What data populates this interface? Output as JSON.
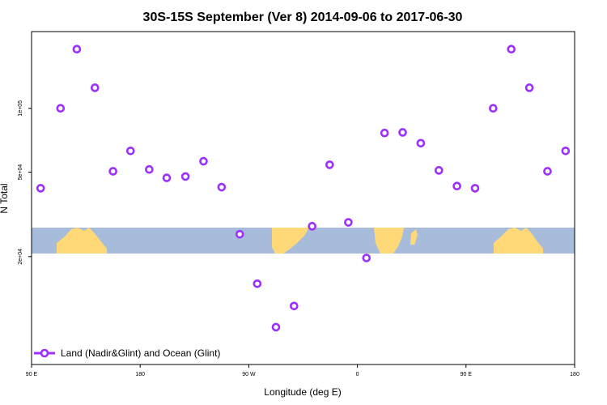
{
  "chart_data": {
    "type": "scatter",
    "title": "30S-15S September (Ver 8)   2014-09-06 to 2017-06-30",
    "xlabel": "Longitude (deg E)",
    "ylabel": "N Total",
    "x_domain_deg": [
      90,
      540
    ],
    "y_domain_value": [
      6200,
      230000
    ],
    "y_scale": "log",
    "x_ticks": [
      {
        "value": 90,
        "label": "90 E"
      },
      {
        "value": 180,
        "label": "180"
      },
      {
        "value": 270,
        "label": "90 W"
      },
      {
        "value": 360,
        "label": "0"
      },
      {
        "value": 450,
        "label": "90 E"
      },
      {
        "value": 540,
        "label": "180"
      }
    ],
    "y_ticks": [
      {
        "value": 20000,
        "label": "2e+04"
      },
      {
        "value": 50000,
        "label": "5e+04"
      },
      {
        "value": 100000,
        "label": "1e+05"
      }
    ],
    "legend": {
      "position": "bottom-left",
      "label": "Land (Nadir&Glint) and Ocean (Glint)"
    },
    "marker_color": "#9b30ff",
    "map_band": {
      "ocean_color": "#a7bcda",
      "land_color": "#ffd977"
    },
    "series": [
      {
        "name": "Land (Nadir&Glint) and Ocean (Glint)",
        "points": [
          [
            97.5,
            42000
          ],
          [
            114,
            100000
          ],
          [
            127.5,
            190000
          ],
          [
            142.5,
            125000
          ],
          [
            157.5,
            50500
          ],
          [
            172,
            63000
          ],
          [
            187.5,
            51500
          ],
          [
            202,
            47000
          ],
          [
            217.5,
            47700
          ],
          [
            232.5,
            56300
          ],
          [
            247.5,
            42500
          ],
          [
            262.5,
            25500
          ],
          [
            277,
            14900
          ],
          [
            292.5,
            9300
          ],
          [
            307.5,
            11700
          ],
          [
            322.5,
            27800
          ],
          [
            337,
            54200
          ],
          [
            352.5,
            29000
          ],
          [
            367.5,
            19700
          ],
          [
            382.5,
            76500
          ],
          [
            397.5,
            77000
          ],
          [
            412.5,
            68500
          ],
          [
            427.5,
            51000
          ],
          [
            442.5,
            43000
          ],
          [
            457.5,
            42000
          ],
          [
            472.5,
            100000
          ],
          [
            487.5,
            190000
          ],
          [
            502.5,
            125000
          ],
          [
            517.5,
            50500
          ],
          [
            532.5,
            63000
          ]
        ]
      }
    ]
  }
}
